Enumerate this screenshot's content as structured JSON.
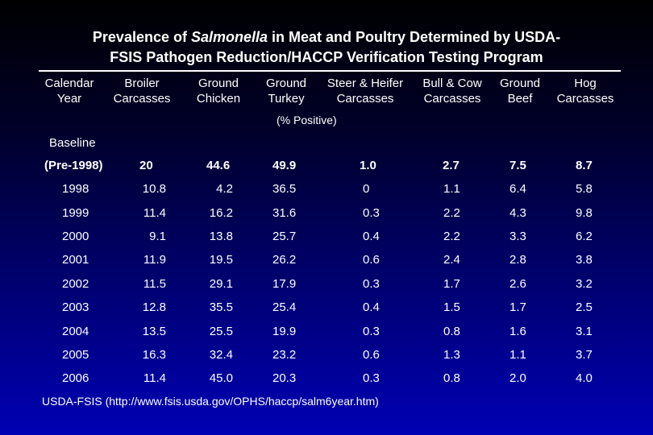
{
  "title": {
    "part1": "Prevalence of ",
    "italic": "Salmonella",
    "part2": " in Meat and Poultry Determined by USDA-",
    "line2": "FSIS Pathogen Reduction/HACCP Verification Testing Program"
  },
  "headers": [
    {
      "l1": "Calendar",
      "l2": "Year"
    },
    {
      "l1": "Broiler",
      "l2": "Carcasses"
    },
    {
      "l1": "Ground",
      "l2": "Chicken"
    },
    {
      "l1": "Ground",
      "l2": "Turkey"
    },
    {
      "l1": "Steer & Heifer",
      "l2": "Carcasses"
    },
    {
      "l1": "Bull & Cow",
      "l2": "Carcasses"
    },
    {
      "l1": "Ground",
      "l2": "Beef"
    },
    {
      "l1": "Hog",
      "l2": "Carcasses"
    }
  ],
  "unit_label": "(% Positive)",
  "baseline_label": "Baseline",
  "rows": [
    {
      "year": "(Pre-1998)",
      "values": [
        "20",
        "44.6",
        "49.9",
        "1.0",
        "2.7",
        "7.5",
        "8.7"
      ],
      "bold": true
    },
    {
      "year": "1998",
      "values": [
        "10.8",
        "4.2",
        "36.5",
        "0",
        "1.1",
        "6.4",
        "5.8"
      ]
    },
    {
      "year": "1999",
      "values": [
        "11.4",
        "16.2",
        "31.6",
        "0.3",
        "2.2",
        "4.3",
        "9.8"
      ]
    },
    {
      "year": "2000",
      "values": [
        "9.1",
        "13.8",
        "25.7",
        "0.4",
        "2.2",
        "3.3",
        "6.2"
      ]
    },
    {
      "year": "2001",
      "values": [
        "11.9",
        "19.5",
        "26.2",
        "0.6",
        "2.4",
        "2.8",
        "3.8"
      ]
    },
    {
      "year": "2002",
      "values": [
        "11.5",
        "29.1",
        "17.9",
        "0.3",
        "1.7",
        "2.6",
        "3.2"
      ]
    },
    {
      "year": "2003",
      "values": [
        "12.8",
        "35.5",
        "25.4",
        "0.4",
        "1.5",
        "1.7",
        "2.5"
      ]
    },
    {
      "year": "2004",
      "values": [
        "13.5",
        "25.5",
        "19.9",
        "0.3",
        "0.8",
        "1.6",
        "3.1"
      ]
    },
    {
      "year": "2005",
      "values": [
        "16.3",
        "32.4",
        "23.2",
        "0.6",
        "1.3",
        "1.1",
        "3.7"
      ]
    },
    {
      "year": "2006",
      "values": [
        "11.4",
        "45.0",
        "20.3",
        "0.3",
        "0.8",
        "2.0",
        "4.0"
      ]
    }
  ],
  "source": "USDA-FSIS (http://www.fsis.usda.gov/OPHS/haccp/salm6year.htm)"
}
